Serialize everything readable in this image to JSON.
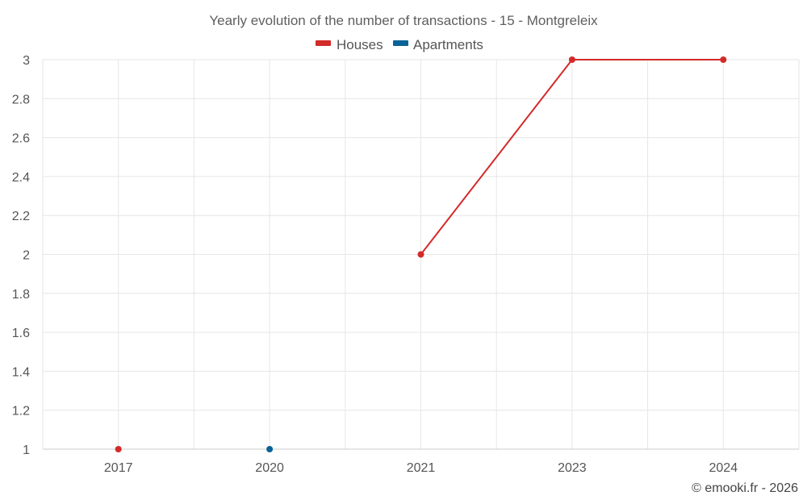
{
  "chart_data": {
    "type": "line",
    "title": "Yearly evolution of the number of transactions - 15 - Montgreleix",
    "categories": [
      "2017",
      "2020",
      "2021",
      "2023",
      "2024"
    ],
    "series": [
      {
        "name": "Houses",
        "color": "#d32a2a",
        "values": [
          1,
          null,
          2,
          3,
          3
        ]
      },
      {
        "name": "Apartments",
        "color": "#0a6396",
        "values": [
          null,
          1,
          null,
          null,
          null
        ]
      }
    ],
    "ylim": [
      1,
      3
    ],
    "yticks": [
      "1",
      "1.2",
      "1.4",
      "1.6",
      "1.8",
      "2",
      "2.2",
      "2.4",
      "2.6",
      "2.8",
      "3"
    ],
    "xlabel": "",
    "ylabel": "",
    "legend_position": "top-center",
    "grid": true
  },
  "credit": "© emooki.fr - 2026"
}
